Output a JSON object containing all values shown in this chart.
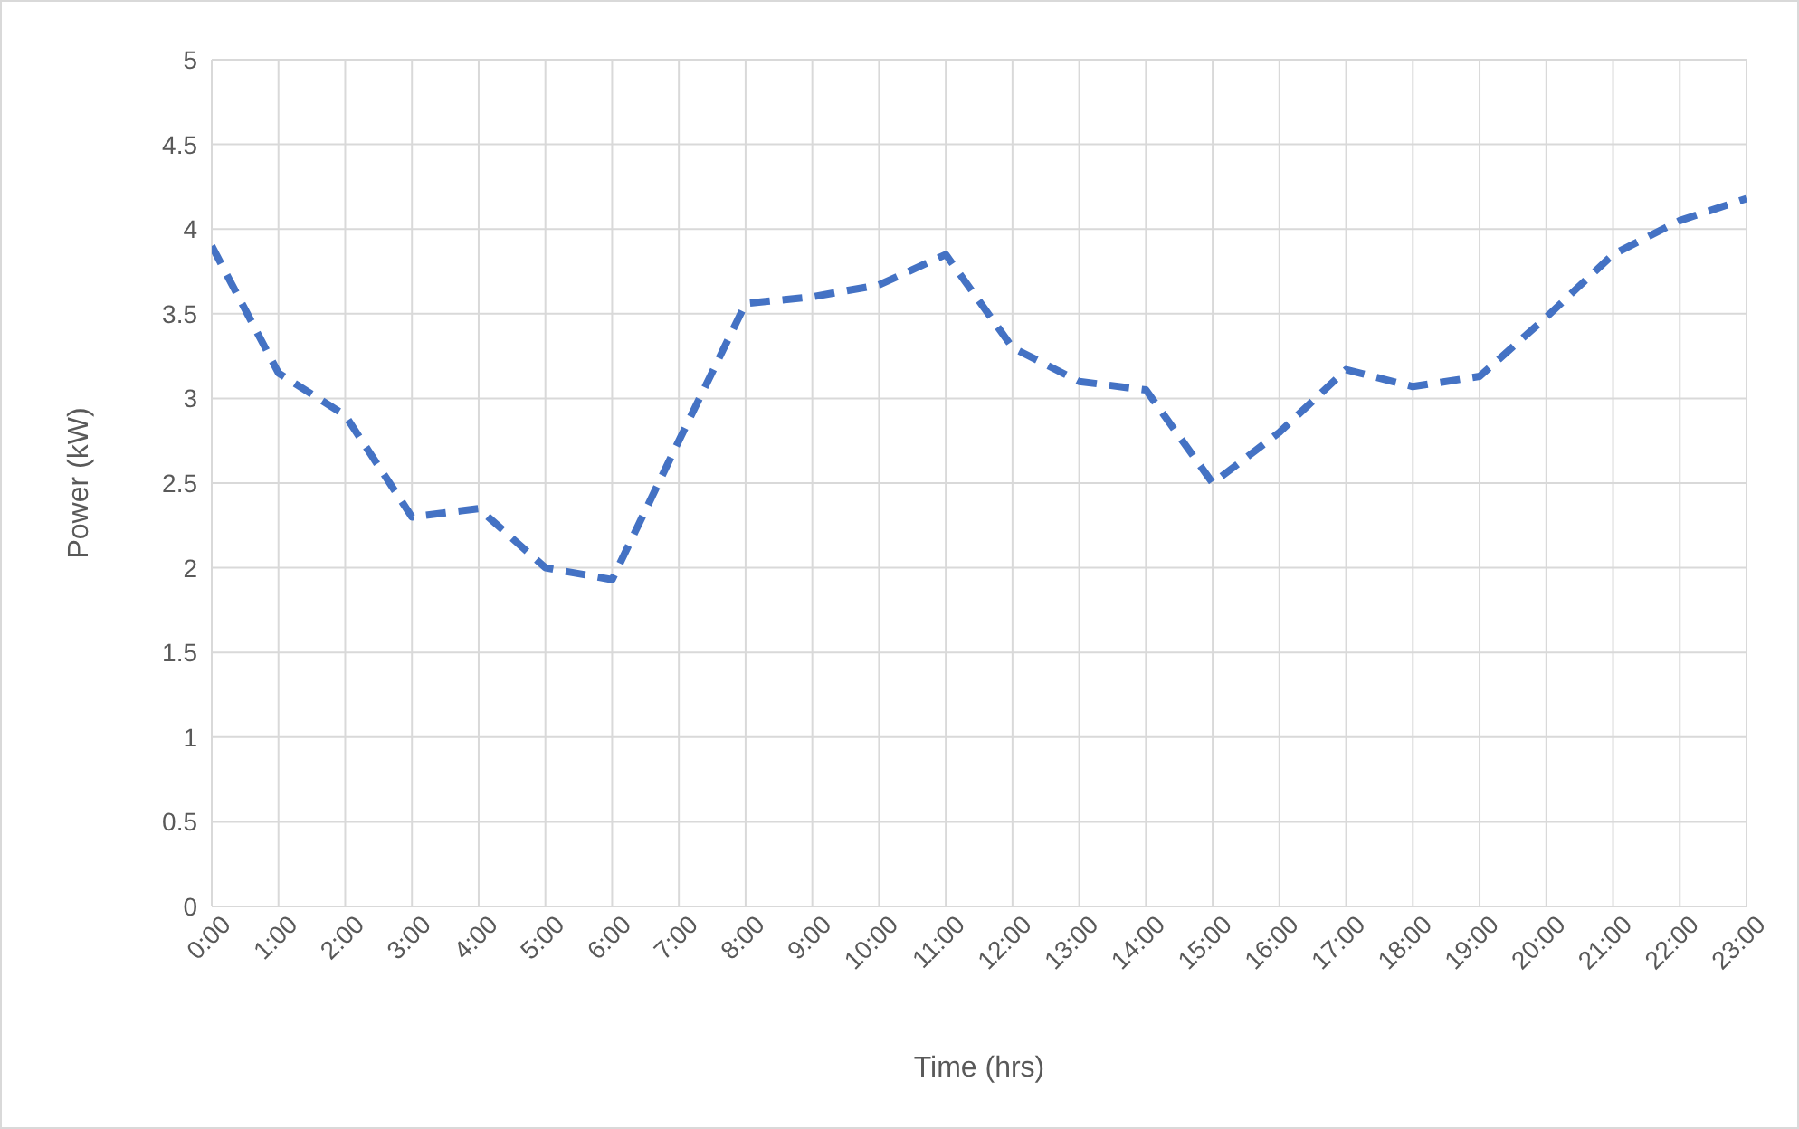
{
  "chart_data": {
    "type": "line",
    "xlabel": "Time (hrs)",
    "ylabel": "Power (kW)",
    "x": [
      0,
      1,
      2,
      3,
      4,
      5,
      6,
      7,
      8,
      9,
      10,
      11,
      12,
      13,
      14,
      15,
      16,
      17,
      18,
      19,
      20,
      21,
      22,
      23
    ],
    "series": [
      {
        "color": "#4472c4",
        "values": [
          3.9,
          3.15,
          2.9,
          2.3,
          2.35,
          2.0,
          1.93,
          2.75,
          3.56,
          3.6,
          3.67,
          3.85,
          3.3,
          3.1,
          3.05,
          2.5,
          2.8,
          3.17,
          3.07,
          3.13,
          3.48,
          3.85,
          4.05,
          4.18
        ]
      }
    ],
    "xlim": [
      0,
      23
    ],
    "xticks": [
      {
        "value": 0,
        "label": "0:00"
      },
      {
        "value": 1,
        "label": "1:00"
      },
      {
        "value": 2,
        "label": "2:00"
      },
      {
        "value": 3,
        "label": "3:00"
      },
      {
        "value": 4,
        "label": "4:00"
      },
      {
        "value": 5,
        "label": "5:00"
      },
      {
        "value": 6,
        "label": "6:00"
      },
      {
        "value": 7,
        "label": "7:00"
      },
      {
        "value": 8,
        "label": "8:00"
      },
      {
        "value": 9,
        "label": "9:00"
      },
      {
        "value": 10,
        "label": "10:00"
      },
      {
        "value": 11,
        "label": "11:00"
      },
      {
        "value": 12,
        "label": "12:00"
      },
      {
        "value": 13,
        "label": "13:00"
      },
      {
        "value": 14,
        "label": "14:00"
      },
      {
        "value": 15,
        "label": "15:00"
      },
      {
        "value": 16,
        "label": "16:00"
      },
      {
        "value": 17,
        "label": "17:00"
      },
      {
        "value": 18,
        "label": "18:00"
      },
      {
        "value": 19,
        "label": "19:00"
      },
      {
        "value": 20,
        "label": "20:00"
      },
      {
        "value": 21,
        "label": "21:00"
      },
      {
        "value": 22,
        "label": "22:00"
      },
      {
        "value": 23,
        "label": "23:00"
      }
    ],
    "ylim": [
      0,
      5
    ],
    "yticks": [
      0,
      0.5,
      1,
      1.5,
      2,
      2.5,
      3,
      3.5,
      4,
      4.5,
      5
    ],
    "grid": true,
    "legend": false,
    "marker": "none",
    "line_style": "dashed"
  }
}
